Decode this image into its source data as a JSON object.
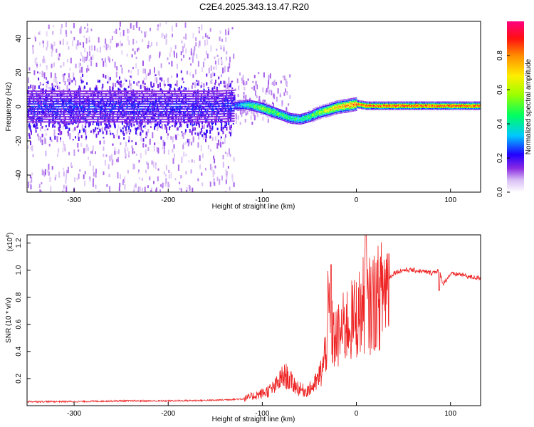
{
  "figure": {
    "title": "C2E4.2025.343.13.47.R20"
  },
  "chart_data": [
    {
      "type": "heatmap",
      "title": "C2E4.2025.343.13.47.R20",
      "xlabel": "Height of straight line (km)",
      "ylabel": "Frequency (Hz)",
      "xlim": [
        -350,
        132
      ],
      "ylim": [
        -50,
        50
      ],
      "x_ticks": [
        -300,
        -200,
        -100,
        0,
        100
      ],
      "x_tick_labels": [
        "-300",
        "-200",
        "-100",
        "0",
        "100"
      ],
      "y_ticks": [
        40,
        20,
        0,
        -20,
        -40
      ],
      "y_tick_labels": [
        "40",
        "20",
        "0",
        "-20",
        "-40"
      ],
      "colorbar": {
        "label": "Normalized spectral amplitude",
        "range": [
          0.0,
          1.0
        ],
        "ticks": [
          0.0,
          0.2,
          0.4,
          0.6,
          0.8
        ],
        "tick_labels": [
          "0.0",
          "0.2",
          "0.4",
          "0.6",
          "0.8"
        ],
        "colormap": [
          "#f2e6fa",
          "#b58ae6",
          "#6a00ff",
          "#0010ff",
          "#00e0ff",
          "#00ff60",
          "#9cff00",
          "#ffff00",
          "#ff9000",
          "#ff0000",
          "#ff0070"
        ]
      },
      "ridge_frequency_track": {
        "x": [
          -340,
          -300,
          -250,
          -200,
          -150,
          -130,
          -115,
          -100,
          -90,
          -80,
          -70,
          -60,
          -50,
          -40,
          -30,
          -20,
          -10,
          0,
          10,
          50,
          100,
          130
        ],
        "freq_hz": [
          0.5,
          0.5,
          0.5,
          0.5,
          0.5,
          1.0,
          1.5,
          -0.5,
          -2.5,
          -4.5,
          -6.5,
          -7.0,
          -5.5,
          -3.0,
          -1.5,
          0.2,
          1.0,
          2.0,
          1.0,
          1.0,
          1.0,
          1.0
        ],
        "peak_amplitude": [
          0.25,
          0.25,
          0.25,
          0.25,
          0.22,
          0.28,
          0.45,
          0.6,
          0.55,
          0.5,
          0.45,
          0.45,
          0.5,
          0.6,
          0.7,
          0.8,
          0.85,
          0.9,
          0.9,
          0.92,
          0.92,
          0.92
        ]
      }
    },
    {
      "type": "line",
      "xlabel": "Height of straight line (km)",
      "ylabel": "SNR (10 * v/v)",
      "y_scale_label": "(x10",
      "y_scale_exponent": "4",
      "y_scale_suffix": ")",
      "xlim": [
        -350,
        132
      ],
      "ylim": [
        0,
        1.26
      ],
      "x_ticks": [
        -300,
        -200,
        -100,
        0,
        100
      ],
      "x_tick_labels": [
        "-300",
        "-200",
        "-100",
        "0",
        "100"
      ],
      "y_ticks": [
        0.2,
        0.4,
        0.6,
        0.8,
        1.0,
        1.2
      ],
      "y_tick_labels": [
        "0.2",
        "0.4",
        "0.6",
        "0.8",
        "1.0",
        "1.2"
      ],
      "series": [
        {
          "name": "SNR",
          "color": "#ee2222",
          "x": [
            -350,
            -300,
            -250,
            -200,
            -150,
            -120,
            -110,
            -100,
            -90,
            -85,
            -80,
            -75,
            -70,
            -65,
            -60,
            -55,
            -50,
            -45,
            -40,
            -35,
            -32,
            -30,
            -28,
            -25,
            -20,
            -15,
            -10,
            -5,
            0,
            5,
            8,
            10,
            12,
            15,
            20,
            25,
            30,
            35,
            40,
            50,
            60,
            70,
            80,
            88,
            92,
            100,
            110,
            120,
            132
          ],
          "values": [
            0.03,
            0.03,
            0.035,
            0.035,
            0.04,
            0.05,
            0.07,
            0.09,
            0.12,
            0.15,
            0.2,
            0.22,
            0.18,
            0.15,
            0.12,
            0.11,
            0.12,
            0.15,
            0.2,
            0.3,
            0.45,
            0.7,
            0.6,
            0.5,
            0.5,
            0.55,
            0.6,
            0.62,
            0.66,
            0.7,
            0.75,
            0.8,
            0.72,
            0.74,
            0.78,
            0.8,
            0.88,
            0.94,
            0.98,
            1.0,
            1.0,
            0.99,
            0.98,
            1.0,
            0.9,
            0.97,
            0.97,
            0.95,
            0.94
          ]
        }
      ]
    }
  ]
}
